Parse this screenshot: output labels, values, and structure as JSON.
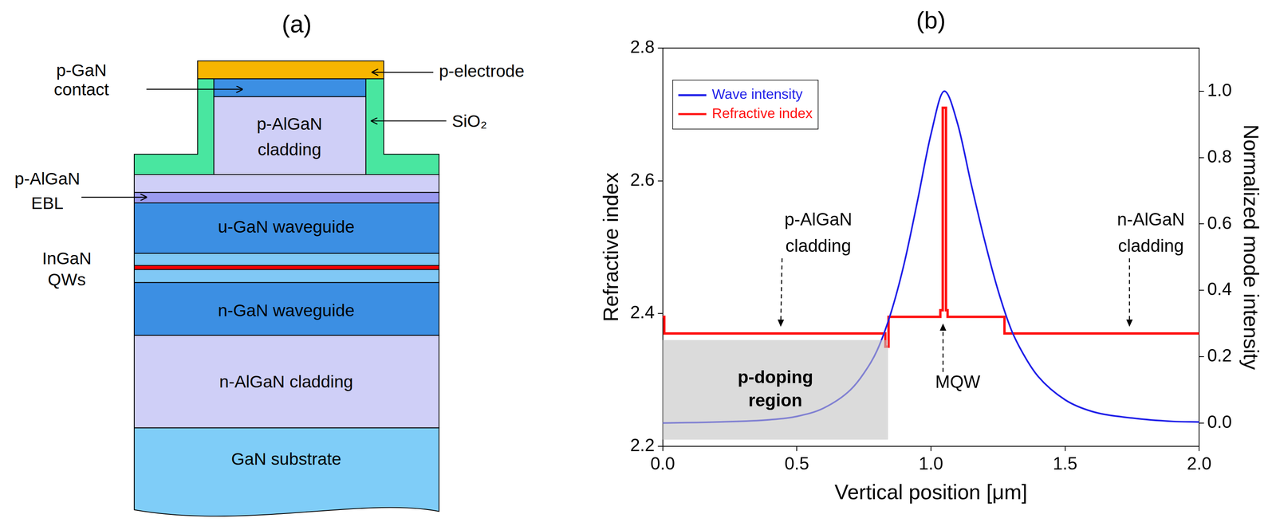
{
  "diagram": {
    "title": "(a)",
    "layer_labels": [
      "p-AlGaN cladding",
      "u-GaN waveguide",
      "n-GaN waveguide",
      "n-AlGaN cladding",
      "GaN substrate"
    ],
    "callouts": [
      "p-GaN contact",
      "p-electrode",
      "SiO₂",
      "p-AlGaN EBL",
      "InGaN QWs"
    ]
  },
  "chart_data": {
    "type": "line",
    "title": "(b)",
    "x_label": "Vertical position [μm]",
    "y_label": "Refractive index",
    "y2_label": "Normalized mode intensity",
    "xlim": [
      0,
      2
    ],
    "xticks": [
      {
        "value": 0,
        "label": "0.0"
      },
      0.5,
      {
        "value": 1,
        "label": "1.0"
      },
      1.5,
      {
        "value": 2,
        "label": "2.0"
      }
    ],
    "ylim": [
      2.2,
      2.8
    ],
    "yticks": [
      2.2,
      2.4,
      2.6,
      2.8
    ],
    "y2lim": [
      -0.07,
      1.13
    ],
    "y2ticks": [
      {
        "value": 0,
        "label": "0.0"
      },
      0.2,
      0.4,
      0.6,
      0.8,
      {
        "value": 1,
        "label": "1.0"
      }
    ],
    "grid": false,
    "legend": "upper left",
    "series": [
      {
        "name": "Wave intensity",
        "color": "#2020e8",
        "axis": "y2",
        "line_style": "smooth",
        "x": [
          0,
          0.2,
          0.4,
          0.5,
          0.6,
          0.7,
          0.75,
          0.8,
          0.85,
          0.9,
          0.95,
          1.0,
          1.05,
          1.1,
          1.15,
          1.2,
          1.25,
          1.3,
          1.35,
          1.4,
          1.5,
          1.6,
          1.75,
          1.9,
          2.0
        ],
        "values": [
          0,
          0.003,
          0.01,
          0.02,
          0.045,
          0.1,
          0.15,
          0.22,
          0.33,
          0.48,
          0.67,
          0.87,
          1.0,
          0.9,
          0.72,
          0.55,
          0.4,
          0.28,
          0.2,
          0.14,
          0.07,
          0.035,
          0.015,
          0.005,
          0.003
        ]
      },
      {
        "name": "Refractive index",
        "color": "#ff1010",
        "axis": "y",
        "line_style": "solid",
        "x": [
          0,
          0.006,
          0.006,
          0.83,
          0.83,
          0.842,
          0.842,
          1.035,
          1.035,
          1.044,
          1.044,
          1.056,
          1.056,
          1.062,
          1.062,
          1.274,
          1.274,
          2.0
        ],
        "values": [
          2.395,
          2.395,
          2.37,
          2.37,
          2.35,
          2.35,
          2.395,
          2.395,
          2.405,
          2.405,
          2.71,
          2.71,
          2.405,
          2.405,
          2.395,
          2.395,
          2.37,
          2.37
        ]
      }
    ],
    "annotations": [
      {
        "text": "p-AlGaN cladding",
        "x": 0.58,
        "y": 2.52,
        "arrow_to": [
          0.44,
          2.38
        ]
      },
      {
        "text": "n-AlGaN cladding",
        "x": 1.82,
        "y": 2.52,
        "arrow_to": [
          1.74,
          2.38
        ]
      },
      {
        "text": "MQW",
        "x": 1.1,
        "y": 2.295,
        "arrow_to": [
          1.045,
          2.385
        ]
      }
    ],
    "regions": [
      {
        "label": "p-doping region",
        "x": [
          0,
          0.84
        ],
        "y": [
          2.21,
          2.36
        ]
      }
    ]
  }
}
